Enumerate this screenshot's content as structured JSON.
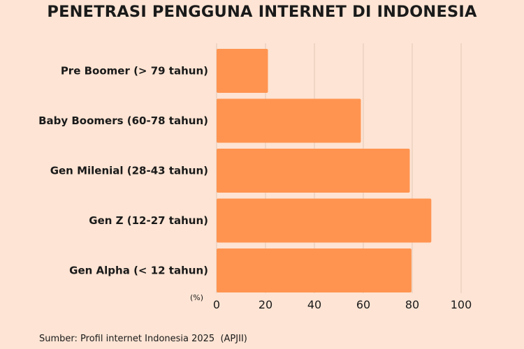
{
  "colors": {
    "background": "#fde4d4",
    "bar": "#ff9450",
    "grid": "#e3c7b6"
  },
  "chart_data": {
    "type": "bar",
    "orientation": "horizontal",
    "title": "PENETRASI PENGGUNA INTERNET DI INDONESIA",
    "categories": [
      "Pre Boomer (> 79 tahun)",
      "Baby Boomers (60-78 tahun)",
      "Gen Milenial (28-43 tahun)",
      "Gen Z (12-27 tahun)",
      "Gen Alpha (< 12 tahun)"
    ],
    "values": [
      21,
      59,
      79,
      87.8,
      79.7
    ],
    "xlabel": "(%)",
    "xlim": [
      0,
      100
    ],
    "xticks": [
      "0",
      "20",
      "40",
      "60",
      "80",
      "100"
    ],
    "grid": true,
    "legend": "none"
  },
  "source": "Sumber: Profil internet Indonesia 2025  (APJII)"
}
